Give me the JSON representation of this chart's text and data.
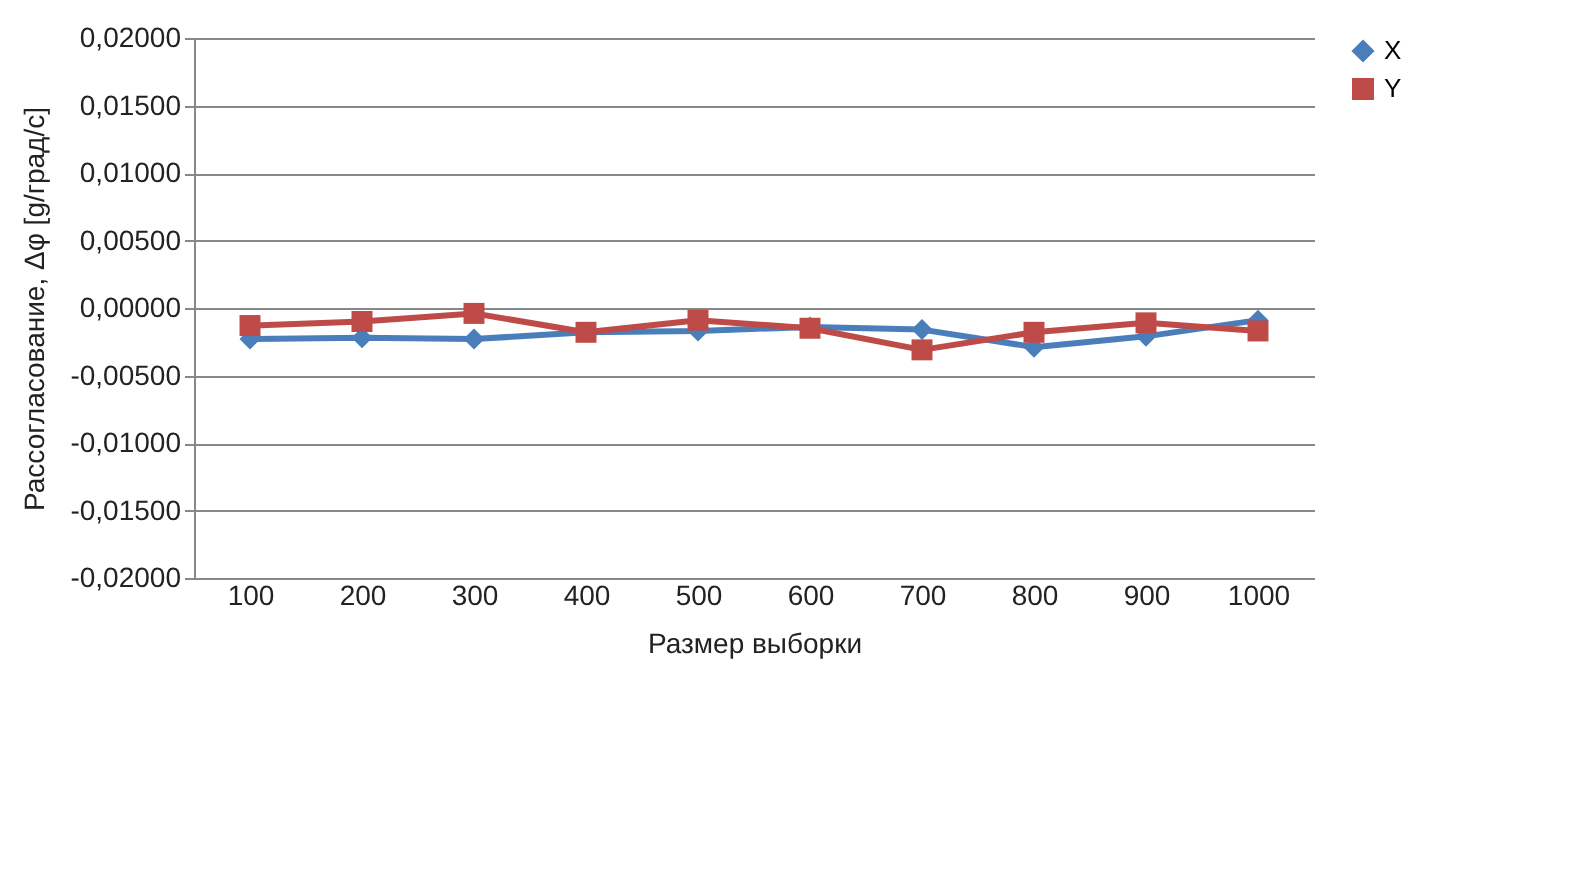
{
  "chart_data": {
    "type": "line",
    "xlabel": "Размер выборки",
    "ylabel": "Рассогласование, Δφ [g/град/c]",
    "categories": [
      "100",
      "200",
      "300",
      "400",
      "500",
      "600",
      "700",
      "800",
      "900",
      "1000"
    ],
    "series": [
      {
        "name": "X",
        "color": "#4a7ebb",
        "marker": "diamond",
        "values": [
          -0.0023,
          -0.0022,
          -0.0023,
          -0.0018,
          -0.0017,
          -0.0014,
          -0.0016,
          -0.0029,
          -0.0021,
          -0.0009
        ]
      },
      {
        "name": "Y",
        "color": "#be4b48",
        "marker": "square",
        "values": [
          -0.0013,
          -0.001,
          -0.0004,
          -0.0018,
          -0.0009,
          -0.0015,
          -0.0031,
          -0.0018,
          -0.0011,
          -0.0017
        ]
      }
    ],
    "ylim": [
      -0.02,
      0.02
    ],
    "yticks": [
      {
        "value": -0.02,
        "label": "-0,02000"
      },
      {
        "value": -0.015,
        "label": "-0,01500"
      },
      {
        "value": -0.01,
        "label": "-0,01000"
      },
      {
        "value": -0.005,
        "label": "-0,00500"
      },
      {
        "value": 0,
        "label": "0,00000"
      },
      {
        "value": 0.005,
        "label": "0,00500"
      },
      {
        "value": 0.01,
        "label": "0,01000"
      },
      {
        "value": 0.015,
        "label": "0,01500"
      },
      {
        "value": 0.02,
        "label": "0,02000"
      }
    ],
    "grid": "y",
    "legend": "right",
    "line_style": "solid"
  }
}
